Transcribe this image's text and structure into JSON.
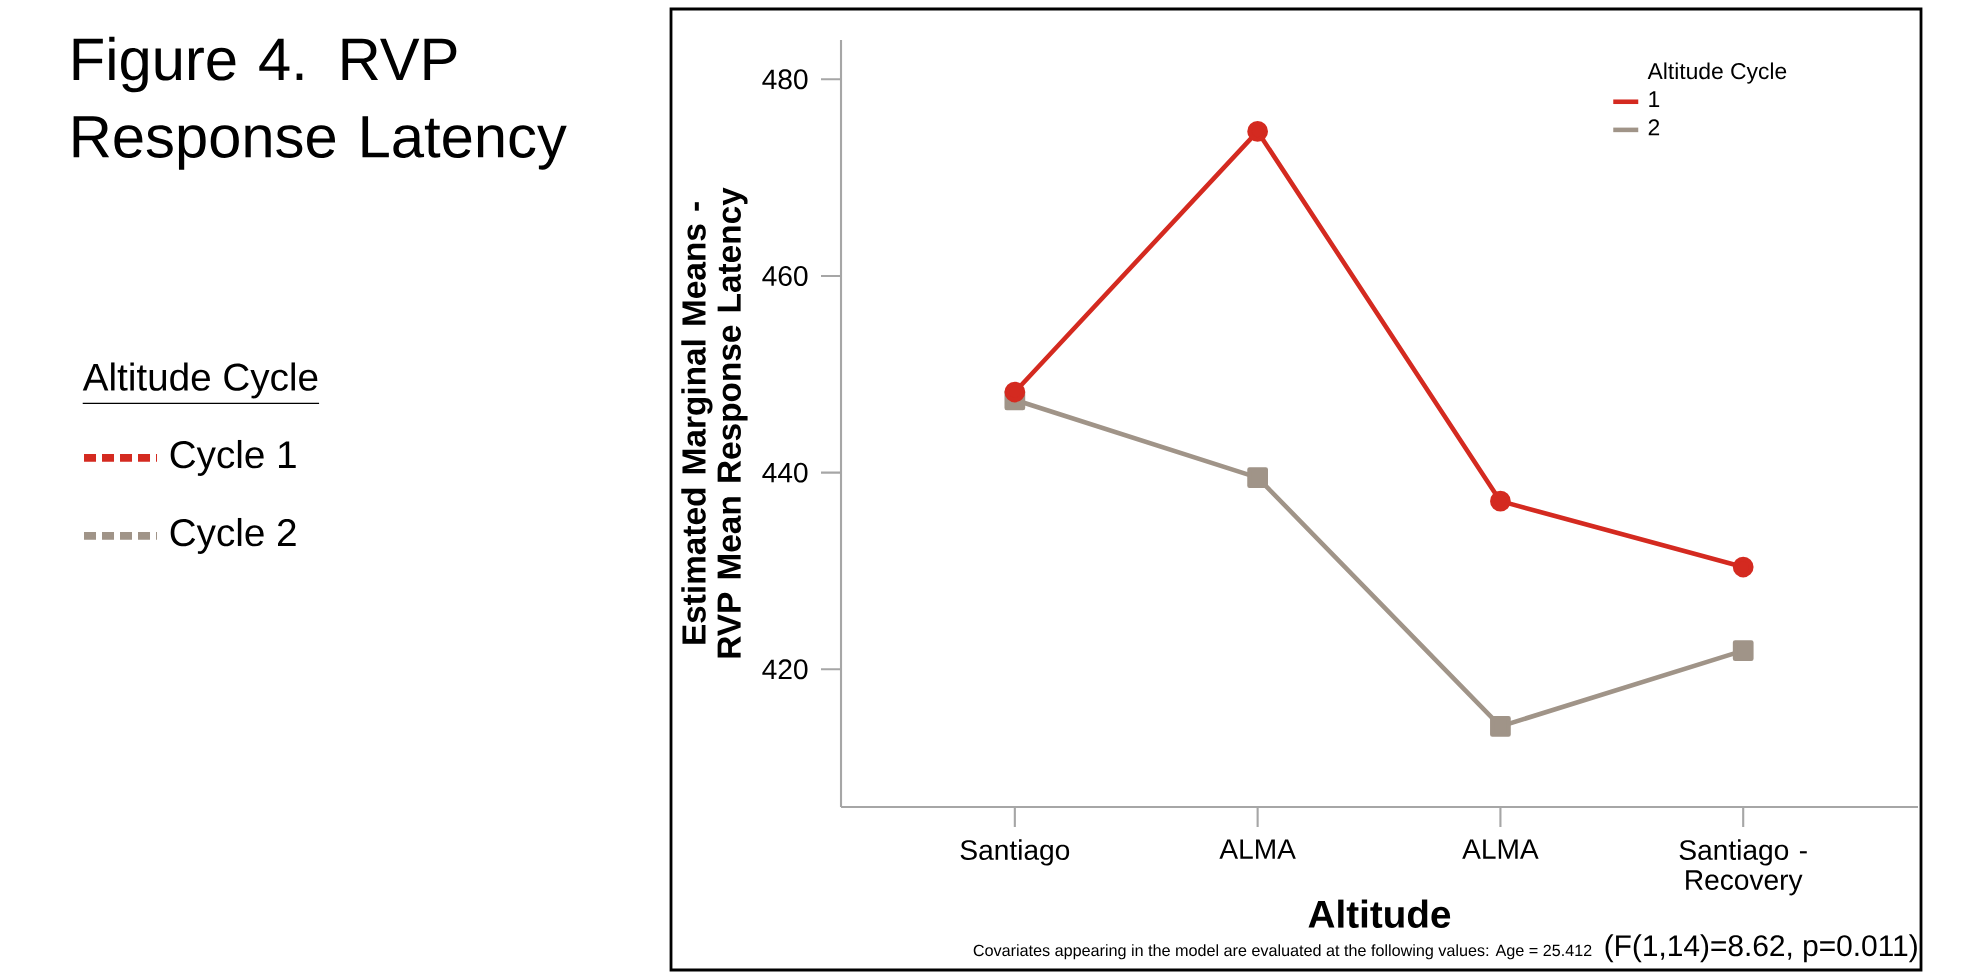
{
  "chart_data": {
    "type": "line",
    "title": "Figure 4. RVP Response Latency",
    "xlabel": "Altitude",
    "ylabel": "Estimated Marginal Means - RVP Mean Response Latency",
    "legend_title": "Altitude Cycle",
    "categories": [
      "Santiago",
      "ALMA",
      "ALMA",
      "Santiago - Recovery"
    ],
    "series": [
      {
        "name": "1",
        "color": "#d42a20",
        "marker": "circle",
        "values": [
          448.2,
          474.7,
          437.1,
          430.4
        ]
      },
      {
        "name": "2",
        "color": "#a09488",
        "marker": "square",
        "values": [
          447.4,
          439.5,
          414.2,
          421.9
        ]
      }
    ],
    "ylim": [
      406,
      484
    ],
    "yticks": [
      420,
      440,
      460,
      480
    ],
    "grid": false,
    "legend": "top right",
    "line_style": "solid",
    "annotations": [
      "Altitude Cycle",
      "Cycle 1",
      "Cycle 2",
      "Covariates appearing in the model are evaluated at the following values: Age = 25.412",
      "(F(1,14)=8.62, p=0.011)"
    ]
  }
}
